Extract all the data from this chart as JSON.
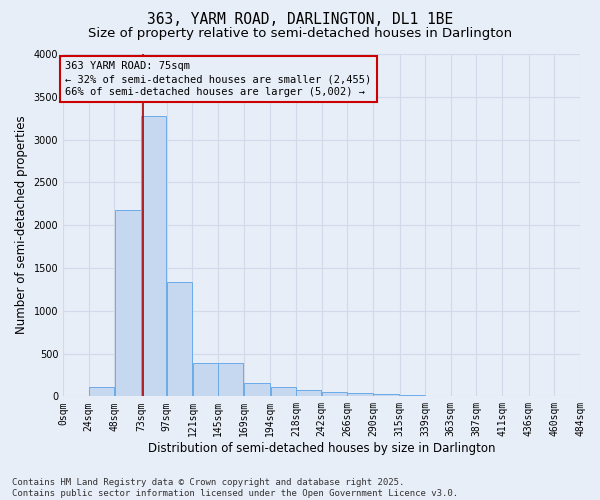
{
  "title_line1": "363, YARM ROAD, DARLINGTON, DL1 1BE",
  "title_line2": "Size of property relative to semi-detached houses in Darlington",
  "xlabel": "Distribution of semi-detached houses by size in Darlington",
  "ylabel": "Number of semi-detached properties",
  "annotation_title": "363 YARM ROAD: 75sqm",
  "annotation_line2": "← 32% of semi-detached houses are smaller (2,455)",
  "annotation_line3": "66% of semi-detached houses are larger (5,002) →",
  "footer_line1": "Contains HM Land Registry data © Crown copyright and database right 2025.",
  "footer_line2": "Contains public sector information licensed under the Open Government Licence v3.0.",
  "property_size_sqm": 75,
  "bar_left_edges": [
    0,
    24,
    48,
    73,
    97,
    121,
    145,
    169,
    194,
    218,
    242,
    266,
    290,
    315,
    339,
    363,
    387,
    411,
    436,
    460
  ],
  "bar_widths": [
    24,
    24,
    25,
    24,
    24,
    24,
    24,
    25,
    24,
    24,
    24,
    24,
    25,
    24,
    24,
    24,
    24,
    25,
    24,
    24
  ],
  "bar_heights": [
    0,
    110,
    2175,
    3280,
    1340,
    390,
    390,
    160,
    105,
    70,
    55,
    38,
    25,
    10,
    5,
    5,
    3,
    0,
    0,
    0
  ],
  "tick_labels": [
    "0sqm",
    "24sqm",
    "48sqm",
    "73sqm",
    "97sqm",
    "121sqm",
    "145sqm",
    "169sqm",
    "194sqm",
    "218sqm",
    "242sqm",
    "266sqm",
    "290sqm",
    "315sqm",
    "339sqm",
    "363sqm",
    "387sqm",
    "411sqm",
    "436sqm",
    "460sqm",
    "484sqm"
  ],
  "tick_positions": [
    0,
    24,
    48,
    73,
    97,
    121,
    145,
    169,
    194,
    218,
    242,
    266,
    290,
    315,
    339,
    363,
    387,
    411,
    436,
    460,
    484
  ],
  "bar_color": "#c5d8f0",
  "bar_edge_color": "#6aabe8",
  "vline_color": "#aa0000",
  "vline_x": 75,
  "ylim": [
    0,
    4000
  ],
  "xlim": [
    0,
    484
  ],
  "yticks": [
    0,
    500,
    1000,
    1500,
    2000,
    2500,
    3000,
    3500,
    4000
  ],
  "annotation_box_color": "#cc0000",
  "background_color": "#e8eef8",
  "grid_color": "#d0dae8",
  "title_fontsize": 10.5,
  "subtitle_fontsize": 9.5,
  "axis_label_fontsize": 8.5,
  "tick_fontsize": 7,
  "annotation_fontsize": 7.5,
  "footer_fontsize": 6.5
}
